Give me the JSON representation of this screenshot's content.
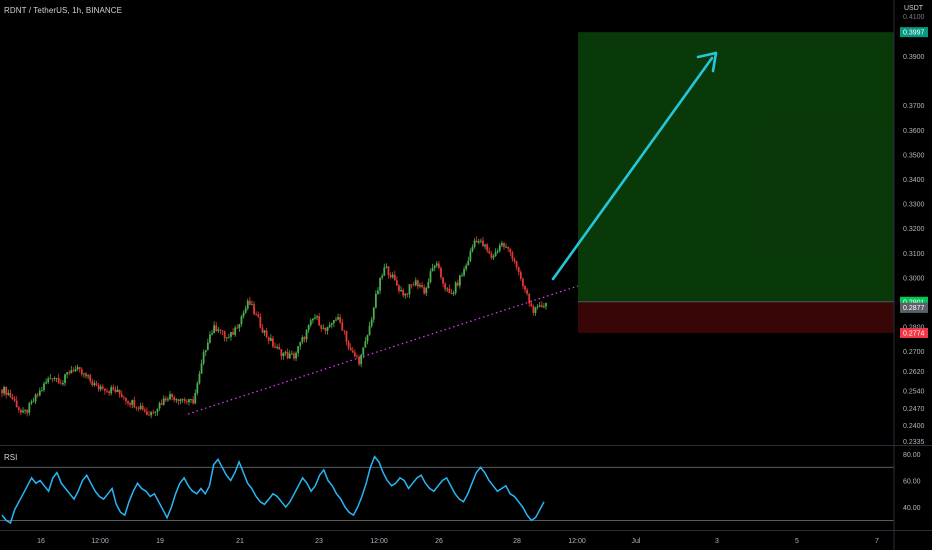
{
  "title": "RDNT / TetherUS, 1h, BINANCE",
  "price_unit": "USDT",
  "indicator_label": "RSI",
  "colors": {
    "up": "#26a69a",
    "down": "#ef5350",
    "candle_up": "#4caf50",
    "candle_down": "#e53935",
    "rsi_line": "#29b6f6",
    "trendline": "#e040fb",
    "arrow": "#26c6da",
    "target_zone": "#0a3b0a",
    "stop_zone": "#3b0606",
    "target_tag": "#089981",
    "stop_tag": "#f23645",
    "current_tag": "#00c853"
  },
  "chart_data": [
    {
      "type": "candlestick",
      "x_ticks": [
        "16",
        "12:00",
        "19",
        "21",
        "23",
        "12:00",
        "26",
        "28",
        "12:00",
        "Jul",
        "3",
        "5",
        "7"
      ],
      "y_ticks": [
        0.2335,
        0.24,
        0.247,
        0.254,
        0.262,
        0.27,
        0.28,
        0.29,
        0.3,
        0.31,
        0.32,
        0.33,
        0.34,
        0.35,
        0.36,
        0.37,
        0.39
      ],
      "y_tick_labels": [
        "0.2335",
        "0.2400",
        "0.2470",
        "0.2540",
        "0.2620",
        "0.2700",
        "0.2800",
        "0.2900",
        "0.3000",
        "0.3100",
        "0.3200",
        "0.3300",
        "0.3400",
        "0.3500",
        "0.3600",
        "0.3700",
        "0.3900"
      ],
      "ylim": [
        0.2335,
        0.4105
      ],
      "price_path": [
        0.2545,
        0.2535,
        0.251,
        0.248,
        0.244,
        0.246,
        0.249,
        0.252,
        0.255,
        0.258,
        0.26,
        0.259,
        0.257,
        0.261,
        0.263,
        0.262,
        0.2605,
        0.259,
        0.257,
        0.255,
        0.256,
        0.254,
        0.2545,
        0.253,
        0.252,
        0.25,
        0.249,
        0.248,
        0.247,
        0.244,
        0.246,
        0.248,
        0.25,
        0.252,
        0.2515,
        0.251,
        0.2505,
        0.249,
        0.25,
        0.258,
        0.268,
        0.276,
        0.279,
        0.28,
        0.276,
        0.275,
        0.278,
        0.282,
        0.286,
        0.29,
        0.286,
        0.282,
        0.278,
        0.275,
        0.272,
        0.27,
        0.269,
        0.268,
        0.268,
        0.272,
        0.276,
        0.28,
        0.284,
        0.282,
        0.278,
        0.279,
        0.284,
        0.282,
        0.278,
        0.27,
        0.268,
        0.266,
        0.272,
        0.28,
        0.29,
        0.298,
        0.304,
        0.302,
        0.298,
        0.295,
        0.293,
        0.296,
        0.298,
        0.297,
        0.294,
        0.301,
        0.306,
        0.301,
        0.296,
        0.292,
        0.296,
        0.3,
        0.304,
        0.31,
        0.316,
        0.314,
        0.312,
        0.308,
        0.31,
        0.314,
        0.312,
        0.31,
        0.306,
        0.298,
        0.294,
        0.288,
        0.286,
        0.288,
        0.2901
      ],
      "current_price": 0.2901,
      "current_price_label": "0.2901",
      "countdown": "00:22",
      "crosshair_price_label": "0.2877",
      "trendline": {
        "from": {
          "x": "19",
          "price": 0.2445
        },
        "to": {
          "x": "28",
          "price": 0.289
        },
        "style": "dotted"
      },
      "target_zone": {
        "top": 0.3997,
        "bottom": 0.2901,
        "label": "0.3997"
      },
      "stop_zone": {
        "top": 0.2901,
        "bottom": 0.2774,
        "label": "0.2774"
      },
      "annotation": "upward arrow projecting toward 0.3997 target"
    },
    {
      "type": "line",
      "name": "RSI",
      "y_ticks": [
        40,
        60,
        80
      ],
      "y_tick_labels": [
        "40.00",
        "60.00",
        "80.00"
      ],
      "ylim": [
        25,
        83
      ],
      "bands": [
        30,
        70
      ],
      "values": [
        34,
        30,
        28,
        38,
        44,
        50,
        56,
        62,
        58,
        60,
        56,
        52,
        62,
        66,
        58,
        54,
        50,
        46,
        52,
        60,
        64,
        58,
        52,
        48,
        46,
        50,
        54,
        42,
        36,
        34,
        44,
        52,
        58,
        54,
        52,
        48,
        50,
        44,
        38,
        32,
        40,
        50,
        58,
        62,
        56,
        52,
        50,
        54,
        50,
        56,
        72,
        76,
        70,
        64,
        60,
        66,
        74,
        66,
        58,
        54,
        48,
        44,
        42,
        46,
        50,
        48,
        44,
        40,
        44,
        50,
        56,
        62,
        58,
        52,
        56,
        64,
        68,
        60,
        56,
        50,
        46,
        40,
        36,
        34,
        40,
        48,
        58,
        70,
        78,
        74,
        66,
        60,
        56,
        58,
        62,
        60,
        54,
        58,
        62,
        64,
        58,
        54,
        52,
        56,
        60,
        62,
        56,
        50,
        46,
        44,
        50,
        58,
        66,
        70,
        66,
        60,
        56,
        52,
        54,
        56,
        50,
        48,
        44,
        40,
        34,
        30,
        32,
        38,
        44
      ]
    }
  ]
}
